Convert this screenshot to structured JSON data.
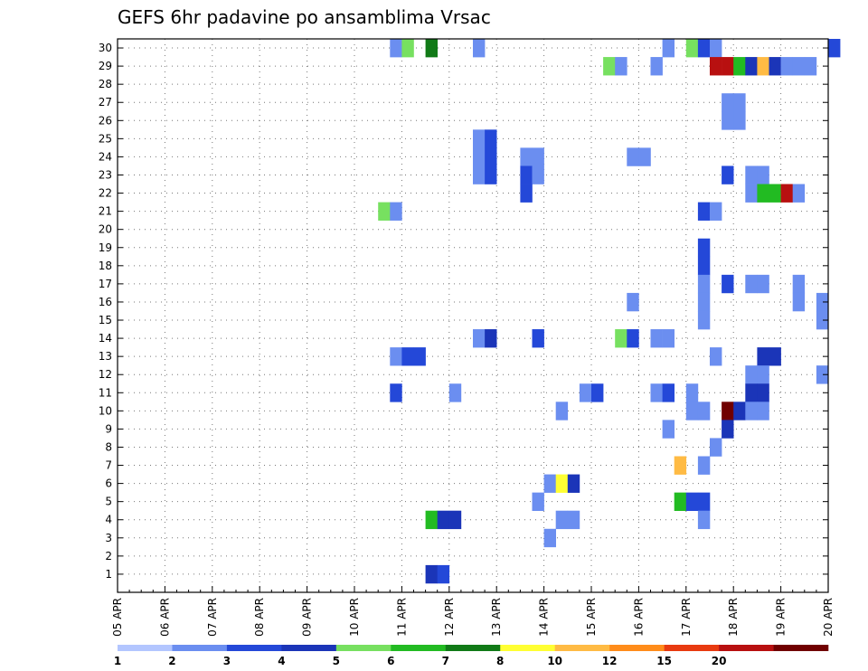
{
  "chart_data": {
    "type": "heatmap",
    "title": "GEFS 6hr padavine po ansamblima Vrsac",
    "x_ticks": [
      "05 APR",
      "06 APR",
      "07 APR",
      "08 APR",
      "09 APR",
      "10 APR",
      "11 APR",
      "12 APR",
      "13 APR",
      "14 APR",
      "15 APR",
      "16 APR",
      "17 APR",
      "18 APR",
      "19 APR",
      "20 APR"
    ],
    "y_ticks": [
      "1",
      "2",
      "3",
      "4",
      "5",
      "6",
      "7",
      "8",
      "9",
      "10",
      "11",
      "12",
      "13",
      "14",
      "15",
      "16",
      "17",
      "18",
      "19",
      "20",
      "21",
      "22",
      "23",
      "24",
      "25",
      "26",
      "27",
      "28",
      "29",
      "30"
    ],
    "x_range": [
      "05 APR",
      "20 APR"
    ],
    "y_range": [
      0,
      30
    ],
    "time_step_hours": 6,
    "grid": true,
    "colorbar": {
      "labels": [
        "1",
        "2",
        "3",
        "4",
        "5",
        "6",
        "7",
        "8",
        "10",
        "12",
        "15",
        "20"
      ],
      "colors": [
        "#b3c6ff",
        "#6b8ef0",
        "#2448d8",
        "#1b35b8",
        "#77e060",
        "#22bb22",
        "#117a17",
        "#ffff33",
        "#ffbb44",
        "#ff8c1a",
        "#e83a10",
        "#b81010",
        "#700000"
      ]
    },
    "cells": [
      {
        "m": 30,
        "t": "10 APR 18Z",
        "v": 1
      },
      {
        "m": 30,
        "t": "11 APR 00Z",
        "v": 4
      },
      {
        "m": 30,
        "t": "11 APR 12Z",
        "v": 6.5
      },
      {
        "m": 30,
        "t": "12 APR 12Z",
        "v": 1
      },
      {
        "m": 30,
        "t": "16 APR 12Z",
        "v": 1
      },
      {
        "m": 30,
        "t": "17 APR 00Z",
        "v": 4
      },
      {
        "m": 30,
        "t": "17 APR 06Z",
        "v": 2
      },
      {
        "m": 30,
        "t": "17 APR 12Z",
        "v": 1
      },
      {
        "m": 30,
        "t": "20 APR 00Z",
        "v": 2
      },
      {
        "m": 29,
        "t": "15 APR 06Z",
        "v": 4
      },
      {
        "m": 29,
        "t": "15 APR 12Z",
        "v": 1
      },
      {
        "m": 29,
        "t": "16 APR 06Z",
        "v": 1
      },
      {
        "m": 29,
        "t": "17 APR 12Z",
        "v": 15
      },
      {
        "m": 29,
        "t": "17 APR 18Z",
        "v": 15
      },
      {
        "m": 29,
        "t": "18 APR 00Z",
        "v": 5.5
      },
      {
        "m": 29,
        "t": "18 APR 06Z",
        "v": 3
      },
      {
        "m": 29,
        "t": "18 APR 12Z",
        "v": 9
      },
      {
        "m": 29,
        "t": "18 APR 18Z",
        "v": 3
      },
      {
        "m": 29,
        "t": "19 APR 00Z",
        "v": 1
      },
      {
        "m": 29,
        "t": "19 APR 06Z",
        "v": 1
      },
      {
        "m": 29,
        "t": "19 APR 12Z",
        "v": 1
      },
      {
        "m": 27,
        "t": "17 APR 18Z",
        "v": 1
      },
      {
        "m": 27,
        "t": "18 APR 00Z",
        "v": 1
      },
      {
        "m": 26,
        "t": "17 APR 18Z",
        "v": 1
      },
      {
        "m": 26,
        "t": "18 APR 00Z",
        "v": 1
      },
      {
        "m": 25,
        "t": "12 APR 12Z",
        "v": 1
      },
      {
        "m": 25,
        "t": "12 APR 18Z",
        "v": 2
      },
      {
        "m": 24,
        "t": "12 APR 12Z",
        "v": 1
      },
      {
        "m": 24,
        "t": "12 APR 18Z",
        "v": 2
      },
      {
        "m": 24,
        "t": "13 APR 12Z",
        "v": 1
      },
      {
        "m": 24,
        "t": "13 APR 18Z",
        "v": 1
      },
      {
        "m": 24,
        "t": "15 APR 18Z",
        "v": 1
      },
      {
        "m": 24,
        "t": "16 APR 00Z",
        "v": 1
      },
      {
        "m": 23,
        "t": "12 APR 12Z",
        "v": 1
      },
      {
        "m": 23,
        "t": "12 APR 18Z",
        "v": 2
      },
      {
        "m": 23,
        "t": "13 APR 12Z",
        "v": 2.5
      },
      {
        "m": 23,
        "t": "13 APR 18Z",
        "v": 1
      },
      {
        "m": 23,
        "t": "17 APR 18Z",
        "v": 2
      },
      {
        "m": 23,
        "t": "18 APR 06Z",
        "v": 1
      },
      {
        "m": 23,
        "t": "18 APR 12Z",
        "v": 1
      },
      {
        "m": 22,
        "t": "13 APR 12Z",
        "v": 2.5
      },
      {
        "m": 22,
        "t": "18 APR 06Z",
        "v": 1
      },
      {
        "m": 22,
        "t": "18 APR 12Z",
        "v": 5.5
      },
      {
        "m": 22,
        "t": "18 APR 18Z",
        "v": 5.5
      },
      {
        "m": 22,
        "t": "19 APR 00Z",
        "v": 15
      },
      {
        "m": 22,
        "t": "19 APR 06Z",
        "v": 1
      },
      {
        "m": 21,
        "t": "10 APR 12Z",
        "v": 4.5
      },
      {
        "m": 21,
        "t": "10 APR 18Z",
        "v": 1
      },
      {
        "m": 21,
        "t": "17 APR 06Z",
        "v": 2
      },
      {
        "m": 21,
        "t": "17 APR 12Z",
        "v": 1
      },
      {
        "m": 19,
        "t": "17 APR 06Z",
        "v": 2
      },
      {
        "m": 18,
        "t": "17 APR 06Z",
        "v": 2
      },
      {
        "m": 17,
        "t": "17 APR 06Z",
        "v": 1
      },
      {
        "m": 17,
        "t": "17 APR 18Z",
        "v": 2
      },
      {
        "m": 17,
        "t": "18 APR 06Z",
        "v": 1
      },
      {
        "m": 17,
        "t": "18 APR 12Z",
        "v": 1
      },
      {
        "m": 17,
        "t": "19 APR 06Z",
        "v": 1
      },
      {
        "m": 16,
        "t": "15 APR 18Z",
        "v": 1
      },
      {
        "m": 16,
        "t": "17 APR 06Z",
        "v": 1
      },
      {
        "m": 16,
        "t": "19 APR 06Z",
        "v": 1
      },
      {
        "m": 16,
        "t": "19 APR 18Z",
        "v": 1
      },
      {
        "m": 15,
        "t": "17 APR 06Z",
        "v": 1
      },
      {
        "m": 15,
        "t": "19 APR 18Z",
        "v": 1
      },
      {
        "m": 14,
        "t": "12 APR 12Z",
        "v": 1
      },
      {
        "m": 14,
        "t": "12 APR 18Z",
        "v": 3
      },
      {
        "m": 14,
        "t": "13 APR 18Z",
        "v": 2
      },
      {
        "m": 14,
        "t": "15 APR 12Z",
        "v": 4.5
      },
      {
        "m": 14,
        "t": "15 APR 18Z",
        "v": 2
      },
      {
        "m": 14,
        "t": "16 APR 06Z",
        "v": 1
      },
      {
        "m": 14,
        "t": "16 APR 12Z",
        "v": 1
      },
      {
        "m": 13,
        "t": "10 APR 18Z",
        "v": 1
      },
      {
        "m": 13,
        "t": "11 APR 00Z",
        "v": 2
      },
      {
        "m": 13,
        "t": "11 APR 06Z",
        "v": 2
      },
      {
        "m": 13,
        "t": "17 APR 12Z",
        "v": 1
      },
      {
        "m": 13,
        "t": "18 APR 12Z",
        "v": 3.5
      },
      {
        "m": 13,
        "t": "18 APR 18Z",
        "v": 3.5
      },
      {
        "m": 12,
        "t": "18 APR 06Z",
        "v": 1
      },
      {
        "m": 12,
        "t": "18 APR 12Z",
        "v": 1
      },
      {
        "m": 12,
        "t": "19 APR 18Z",
        "v": 1
      },
      {
        "m": 11,
        "t": "10 APR 18Z",
        "v": 2
      },
      {
        "m": 11,
        "t": "12 APR 00Z",
        "v": 1
      },
      {
        "m": 11,
        "t": "14 APR 18Z",
        "v": 1
      },
      {
        "m": 11,
        "t": "15 APR 00Z",
        "v": 2
      },
      {
        "m": 11,
        "t": "16 APR 06Z",
        "v": 1
      },
      {
        "m": 11,
        "t": "16 APR 12Z",
        "v": 2
      },
      {
        "m": 11,
        "t": "17 APR 00Z",
        "v": 1
      },
      {
        "m": 11,
        "t": "18 APR 06Z",
        "v": 3
      },
      {
        "m": 11,
        "t": "18 APR 12Z",
        "v": 3
      },
      {
        "m": 10,
        "t": "14 APR 06Z",
        "v": 1
      },
      {
        "m": 10,
        "t": "17 APR 00Z",
        "v": 1
      },
      {
        "m": 10,
        "t": "17 APR 06Z",
        "v": 1
      },
      {
        "m": 10,
        "t": "17 APR 18Z",
        "v": 20
      },
      {
        "m": 10,
        "t": "18 APR 00Z",
        "v": 3.5
      },
      {
        "m": 10,
        "t": "18 APR 06Z",
        "v": 1
      },
      {
        "m": 10,
        "t": "18 APR 12Z",
        "v": 1
      },
      {
        "m": 9,
        "t": "16 APR 12Z",
        "v": 1
      },
      {
        "m": 9,
        "t": "17 APR 18Z",
        "v": 3.5
      },
      {
        "m": 8,
        "t": "17 APR 12Z",
        "v": 1
      },
      {
        "m": 7,
        "t": "16 APR 18Z",
        "v": 9
      },
      {
        "m": 7,
        "t": "17 APR 06Z",
        "v": 1
      },
      {
        "m": 6,
        "t": "14 APR 00Z",
        "v": 1
      },
      {
        "m": 6,
        "t": "14 APR 06Z",
        "v": 7.5
      },
      {
        "m": 6,
        "t": "14 APR 12Z",
        "v": 3.5
      },
      {
        "m": 5,
        "t": "13 APR 18Z",
        "v": 1
      },
      {
        "m": 5,
        "t": "16 APR 18Z",
        "v": 5.5
      },
      {
        "m": 5,
        "t": "17 APR 00Z",
        "v": 2
      },
      {
        "m": 5,
        "t": "17 APR 06Z",
        "v": 2
      },
      {
        "m": 4,
        "t": "11 APR 12Z",
        "v": 5.5
      },
      {
        "m": 4,
        "t": "11 APR 18Z",
        "v": 3
      },
      {
        "m": 4,
        "t": "12 APR 00Z",
        "v": 3
      },
      {
        "m": 4,
        "t": "14 APR 06Z",
        "v": 1
      },
      {
        "m": 4,
        "t": "14 APR 12Z",
        "v": 1
      },
      {
        "m": 4,
        "t": "17 APR 06Z",
        "v": 1
      },
      {
        "m": 3,
        "t": "14 APR 00Z",
        "v": 1
      },
      {
        "m": 1,
        "t": "11 APR 12Z",
        "v": 3
      },
      {
        "m": 1,
        "t": "11 APR 18Z",
        "v": 2
      }
    ]
  }
}
